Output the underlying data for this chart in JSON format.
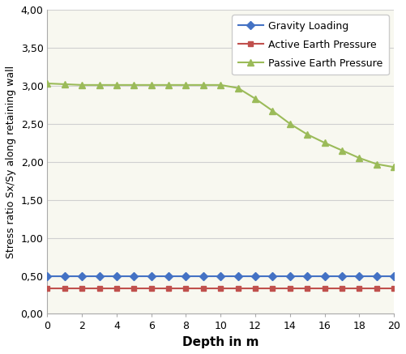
{
  "x": [
    0,
    1,
    2,
    3,
    4,
    5,
    6,
    7,
    8,
    9,
    10,
    11,
    12,
    13,
    14,
    15,
    16,
    17,
    18,
    19,
    20
  ],
  "gravity": [
    0.5,
    0.5,
    0.5,
    0.5,
    0.5,
    0.5,
    0.5,
    0.5,
    0.5,
    0.5,
    0.5,
    0.5,
    0.5,
    0.5,
    0.5,
    0.5,
    0.5,
    0.5,
    0.5,
    0.5,
    0.5
  ],
  "active": [
    0.33,
    0.33,
    0.33,
    0.33,
    0.33,
    0.33,
    0.33,
    0.33,
    0.33,
    0.33,
    0.33,
    0.33,
    0.33,
    0.33,
    0.33,
    0.33,
    0.33,
    0.33,
    0.33,
    0.33,
    0.33
  ],
  "passive": [
    3.03,
    3.02,
    3.01,
    3.01,
    3.01,
    3.01,
    3.01,
    3.01,
    3.01,
    3.01,
    3.01,
    2.97,
    2.83,
    2.67,
    2.5,
    2.36,
    2.25,
    2.15,
    2.05,
    1.97,
    1.93
  ],
  "gravity_color": "#4472C4",
  "active_color": "#C0504D",
  "passive_color": "#9BBB59",
  "xlabel": "Depth in m",
  "ylabel": "Stress ratio Sx/Sy along retaining wall",
  "ylim": [
    0.0,
    4.0
  ],
  "xlim": [
    0,
    20
  ],
  "yticks": [
    0.0,
    0.5,
    1.0,
    1.5,
    2.0,
    2.5,
    3.0,
    3.5,
    4.0
  ],
  "ytick_labels": [
    "0,00",
    "0,50",
    "1,00",
    "1,50",
    "2,00",
    "2,50",
    "3,00",
    "3,50",
    "4,00"
  ],
  "xticks": [
    0,
    2,
    4,
    6,
    8,
    10,
    12,
    14,
    16,
    18,
    20
  ],
  "legend_gravity": "Gravity Loading",
  "legend_active": "Active Earth Pressure",
  "legend_passive": "Passive Earth Pressure",
  "bg_color": "#FFFFFF",
  "plot_bg_color": "#F8F8F0",
  "grid_color": "#D0D0D0",
  "linewidth": 1.5,
  "markersize": 5
}
